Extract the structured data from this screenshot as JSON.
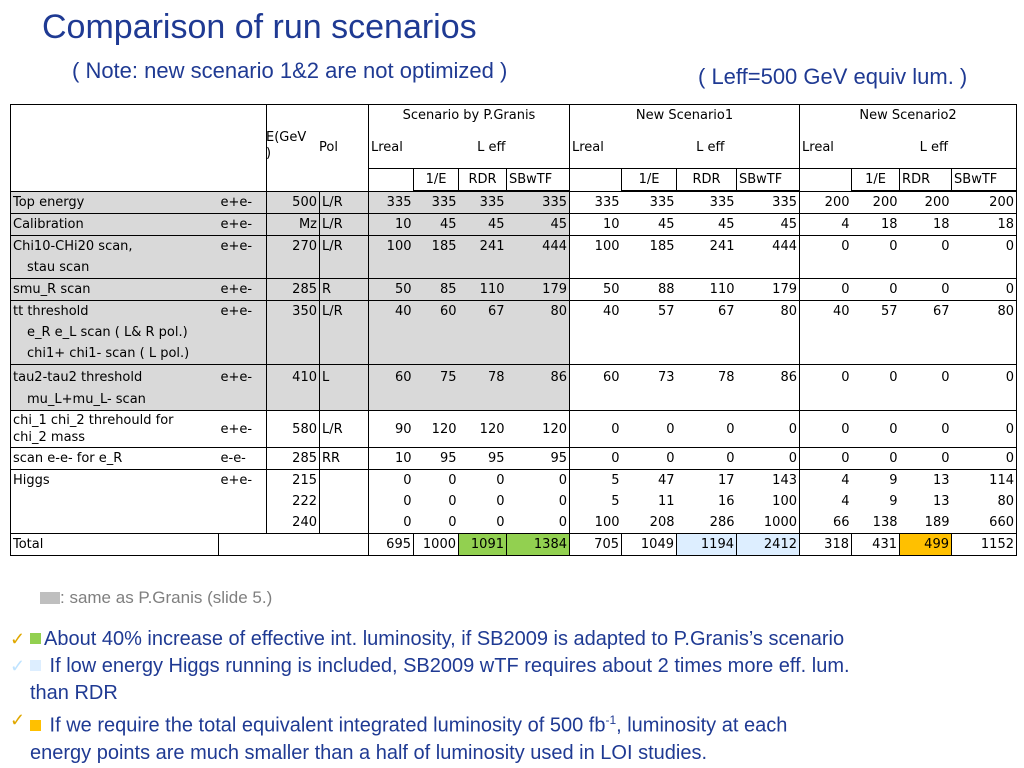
{
  "title": "Comparison of run scenarios",
  "note": "( Note: new scenario  1&2 are not optimized )",
  "leff_note": "( Leff=500 GeV equiv lum. )",
  "table": {
    "group_headers": [
      "Scenario by P.Granis",
      "New Scenario1",
      "New Scenario2"
    ],
    "col_e": "E(GeV)",
    "col_pol": "Pol",
    "col_lreal": "Lreal",
    "col_leff": "L eff",
    "sub_cols": [
      "1/E",
      "RDR",
      "SBwTF"
    ]
  },
  "rows": {
    "top": {
      "label": "Top energy",
      "beam": "e+e-",
      "e": "500",
      "pol": "L/R",
      "v": [
        "335",
        "335",
        "335",
        "335",
        "335",
        "335",
        "335",
        "335",
        "200",
        "200",
        "200",
        "200"
      ]
    },
    "calib": {
      "label": "Calibration",
      "beam": "e+e-",
      "e": "Mz",
      "pol": "L/R",
      "v": [
        "10",
        "45",
        "45",
        "45",
        "10",
        "45",
        "45",
        "45",
        "4",
        "18",
        "18",
        "18"
      ]
    },
    "chi10": {
      "label": "Chi10-CHi20 scan,",
      "sub": "stau scan",
      "beam": "e+e-",
      "e": "270",
      "pol": "L/R",
      "v": [
        "100",
        "185",
        "241",
        "444",
        "100",
        "185",
        "241",
        "444",
        "0",
        "0",
        "0",
        "0"
      ]
    },
    "smu": {
      "label": "smu_R scan",
      "beam": "e+e-",
      "e": "285",
      "pol": "R",
      "v": [
        "50",
        "85",
        "110",
        "179",
        "50",
        "88",
        "110",
        "179",
        "0",
        "0",
        "0",
        "0"
      ]
    },
    "tt": {
      "label": "tt threshold",
      "sub1": "e_R e_L scan ( L& R pol.)",
      "sub2": "chi1+ chi1- scan ( L pol.)",
      "beam": "e+e-",
      "e": "350",
      "pol": "L/R",
      "v": [
        "40",
        "60",
        "67",
        "80",
        "40",
        "57",
        "67",
        "80",
        "40",
        "57",
        "67",
        "80"
      ]
    },
    "tau": {
      "label": "tau2-tau2 threshold",
      "sub": "mu_L+mu_L- scan",
      "beam": "e+e-",
      "e": "410",
      "pol": "L",
      "v": [
        "60",
        "75",
        "78",
        "86",
        "60",
        "73",
        "78",
        "86",
        "0",
        "0",
        "0",
        "0"
      ]
    },
    "chi1": {
      "label1": "chi_1 chi_2 threhould for",
      "label2": "chi_2 mass",
      "beam": "e+e-",
      "e": "580",
      "pol": "L/R",
      "v": [
        "90",
        "120",
        "120",
        "120",
        "0",
        "0",
        "0",
        "0",
        "0",
        "0",
        "0",
        "0"
      ]
    },
    "scanee": {
      "label": "scan e-e- for e_R",
      "beam": "e-e-",
      "e": "285",
      "pol": "RR",
      "v": [
        "10",
        "95",
        "95",
        "95",
        "0",
        "0",
        "0",
        "0",
        "0",
        "0",
        "0",
        "0"
      ]
    },
    "higgs1": {
      "label": "Higgs",
      "beam": "e+e-",
      "e": "215",
      "v": [
        "0",
        "0",
        "0",
        "0",
        "5",
        "47",
        "17",
        "143",
        "4",
        "9",
        "13",
        "114"
      ]
    },
    "higgs2": {
      "e": "222",
      "v": [
        "0",
        "0",
        "0",
        "0",
        "5",
        "11",
        "16",
        "100",
        "4",
        "9",
        "13",
        "80"
      ]
    },
    "higgs3": {
      "e": "240",
      "v": [
        "0",
        "0",
        "0",
        "0",
        "100",
        "208",
        "286",
        "1000",
        "66",
        "138",
        "189",
        "660"
      ]
    },
    "total": {
      "label": "Total",
      "v": [
        "695",
        "1000",
        "1091",
        "1384",
        "705",
        "1049",
        "1194",
        "2412",
        "318",
        "431",
        "499",
        "1152"
      ]
    }
  },
  "legend": ": same as P.Granis (slide 5.)",
  "bullets": {
    "b1": "About 40% increase of effective int. luminosity, if SB2009 is adapted to P.Granis’s scenario",
    "b2a": " If low energy Higgs running is included, SB2009 wTF requires about 2 times more eff. lum.",
    "b2b": "than RDR",
    "b3a": " If we require the total equivalent integrated luminosity of 500 fb",
    "b3sup": "-1",
    "b3b": ", luminosity at each",
    "b3c": "energy points are much smaller than a half of luminosity used in LOI studies."
  },
  "colors": {
    "title": "#1f3a93",
    "gray": "#d9d9d9",
    "green": "#92d050",
    "light_blue": "#ddeeff",
    "orange": "#ffc000",
    "check": "#e0a800"
  }
}
